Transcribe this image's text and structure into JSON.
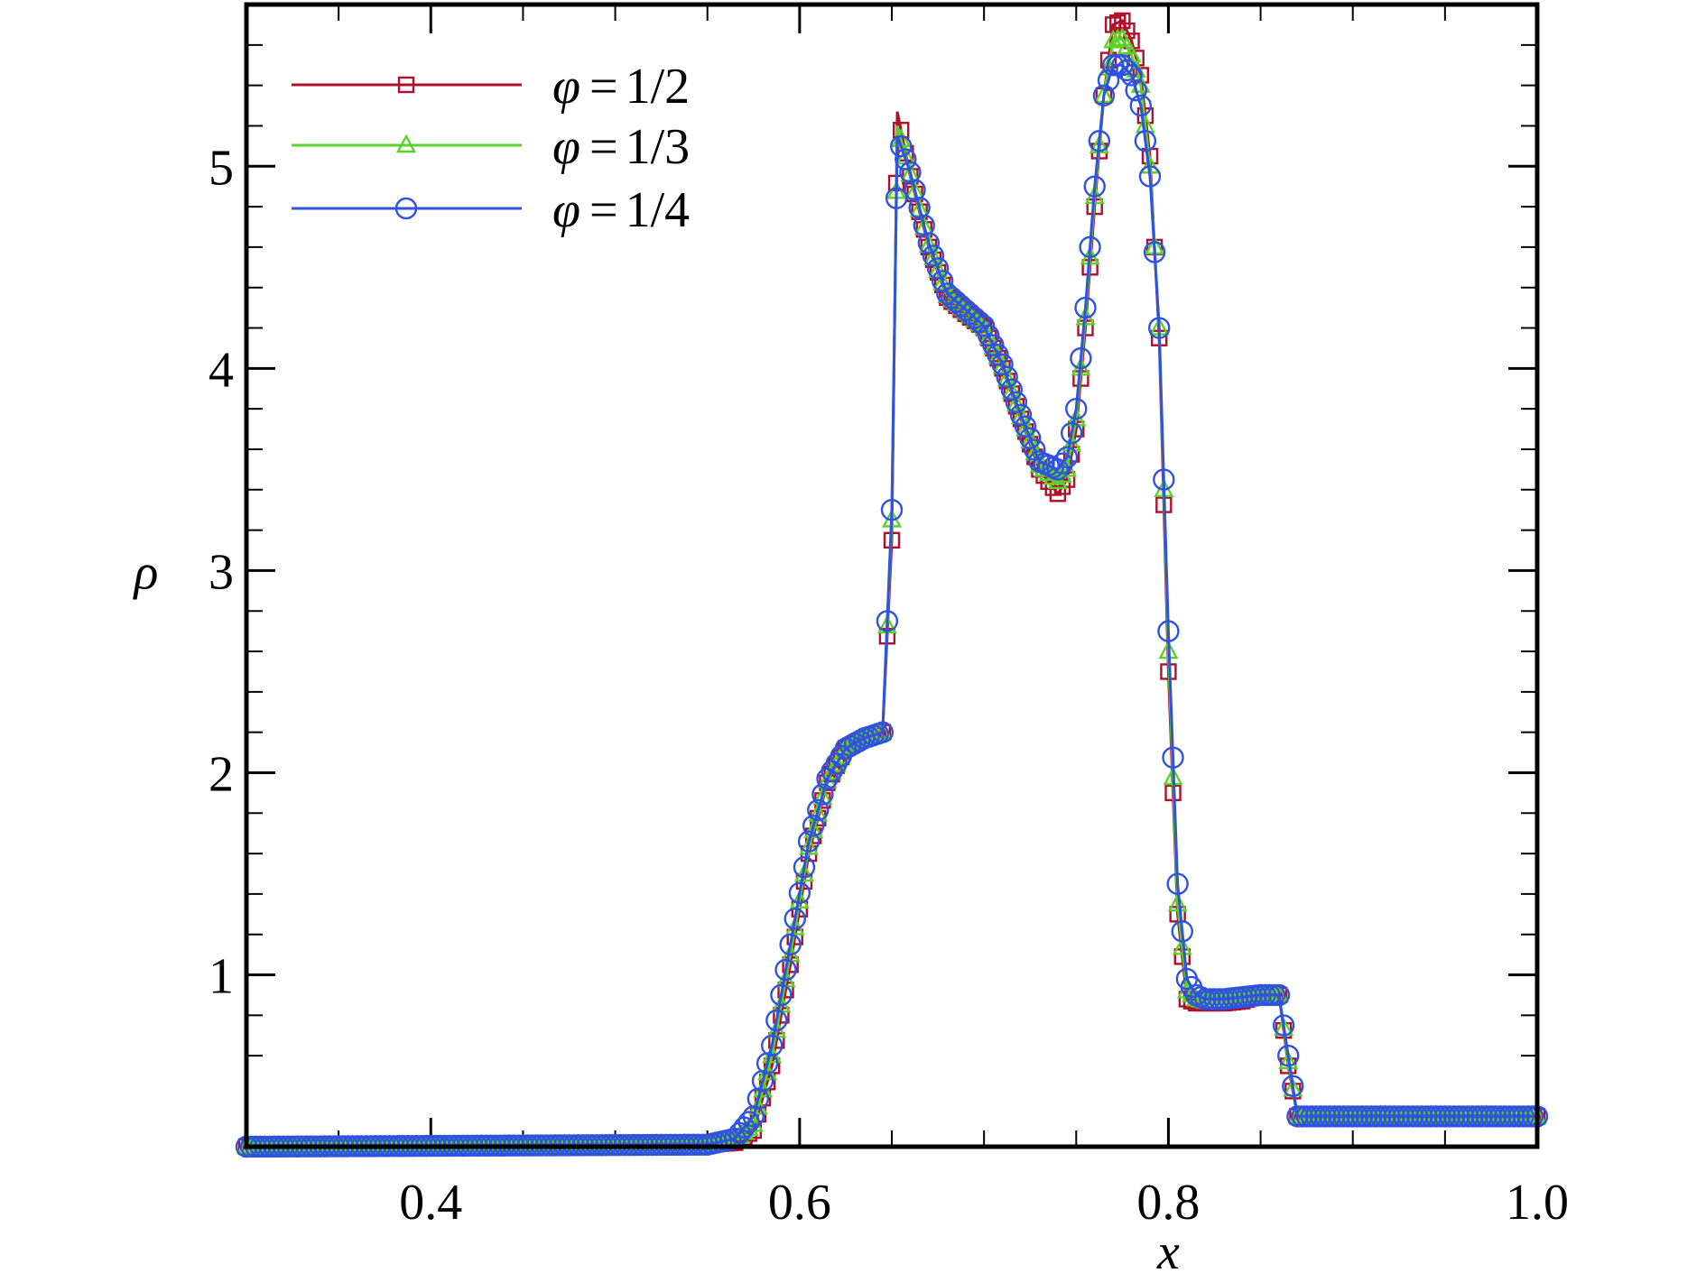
{
  "chart_data": {
    "type": "line",
    "title": "",
    "xlabel": "x",
    "ylabel": "ρ",
    "xlim": [
      0.3,
      1.0
    ],
    "ylim": [
      0.15,
      5.8
    ],
    "x_ticks": [
      0.4,
      0.6,
      0.8,
      1.0
    ],
    "x_tick_labels": [
      "0.4",
      "0.6",
      "0.8",
      "1.0"
    ],
    "y_ticks": [
      1,
      2,
      3,
      4,
      5
    ],
    "y_tick_labels": [
      "1",
      "2",
      "3",
      "4",
      "5"
    ],
    "grid": false,
    "legend_position": "top-left",
    "legend_symbol": "φ",
    "legend_eq": "=",
    "series": [
      {
        "name": "1/2",
        "color": "#b0102a",
        "marker": "square",
        "x": [
          0.3,
          0.55,
          0.565,
          0.575,
          0.585,
          0.595,
          0.605,
          0.615,
          0.625,
          0.635,
          0.645,
          0.65,
          0.653,
          0.66,
          0.67,
          0.68,
          0.69,
          0.7,
          0.71,
          0.72,
          0.73,
          0.74,
          0.745,
          0.75,
          0.755,
          0.76,
          0.765,
          0.77,
          0.775,
          0.78,
          0.785,
          0.79,
          0.795,
          0.8,
          0.805,
          0.81,
          0.815,
          0.82,
          0.83,
          0.84,
          0.85,
          0.86,
          0.865,
          0.87,
          0.9,
          1.0
        ],
        "y": [
          0.15,
          0.16,
          0.17,
          0.23,
          0.55,
          1.05,
          1.6,
          1.95,
          2.12,
          2.17,
          2.2,
          3.15,
          5.27,
          4.95,
          4.6,
          4.35,
          4.27,
          4.2,
          4.0,
          3.75,
          3.5,
          3.38,
          3.45,
          3.7,
          4.2,
          4.8,
          5.35,
          5.7,
          5.72,
          5.62,
          5.45,
          5.05,
          4.15,
          2.5,
          1.3,
          0.88,
          0.86,
          0.86,
          0.86,
          0.87,
          0.9,
          0.9,
          0.55,
          0.3,
          0.3,
          0.3
        ]
      },
      {
        "name": "1/3",
        "color": "#5ad22a",
        "marker": "triangle",
        "x": [
          0.3,
          0.55,
          0.565,
          0.575,
          0.585,
          0.595,
          0.605,
          0.615,
          0.625,
          0.635,
          0.645,
          0.65,
          0.653,
          0.66,
          0.67,
          0.68,
          0.69,
          0.7,
          0.71,
          0.72,
          0.73,
          0.74,
          0.745,
          0.75,
          0.755,
          0.76,
          0.765,
          0.77,
          0.775,
          0.78,
          0.785,
          0.79,
          0.795,
          0.8,
          0.805,
          0.81,
          0.815,
          0.82,
          0.83,
          0.84,
          0.85,
          0.86,
          0.865,
          0.87,
          0.9,
          1.0
        ],
        "y": [
          0.15,
          0.16,
          0.18,
          0.26,
          0.6,
          1.1,
          1.63,
          1.96,
          2.12,
          2.17,
          2.2,
          3.25,
          5.2,
          4.96,
          4.61,
          4.36,
          4.28,
          4.2,
          4.01,
          3.76,
          3.52,
          3.44,
          3.5,
          3.75,
          4.25,
          4.85,
          5.35,
          5.62,
          5.63,
          5.55,
          5.4,
          5.0,
          4.2,
          2.6,
          1.35,
          0.92,
          0.88,
          0.87,
          0.87,
          0.88,
          0.9,
          0.9,
          0.57,
          0.3,
          0.3,
          0.3
        ]
      },
      {
        "name": "1/4",
        "color": "#2f52e0",
        "marker": "circle",
        "x": [
          0.3,
          0.55,
          0.565,
          0.575,
          0.585,
          0.595,
          0.605,
          0.615,
          0.625,
          0.635,
          0.645,
          0.65,
          0.653,
          0.66,
          0.67,
          0.68,
          0.69,
          0.7,
          0.71,
          0.72,
          0.73,
          0.74,
          0.745,
          0.75,
          0.755,
          0.76,
          0.765,
          0.77,
          0.775,
          0.78,
          0.785,
          0.79,
          0.795,
          0.8,
          0.805,
          0.81,
          0.815,
          0.82,
          0.83,
          0.84,
          0.85,
          0.86,
          0.865,
          0.87,
          0.9,
          1.0
        ],
        "y": [
          0.15,
          0.16,
          0.19,
          0.3,
          0.65,
          1.15,
          1.66,
          1.97,
          2.12,
          2.17,
          2.2,
          3.3,
          5.15,
          4.97,
          4.62,
          4.37,
          4.29,
          4.21,
          4.02,
          3.77,
          3.54,
          3.5,
          3.56,
          3.8,
          4.3,
          4.9,
          5.35,
          5.5,
          5.5,
          5.45,
          5.3,
          4.95,
          4.2,
          2.7,
          1.45,
          0.98,
          0.9,
          0.88,
          0.88,
          0.89,
          0.9,
          0.9,
          0.6,
          0.3,
          0.3,
          0.3
        ]
      }
    ]
  }
}
